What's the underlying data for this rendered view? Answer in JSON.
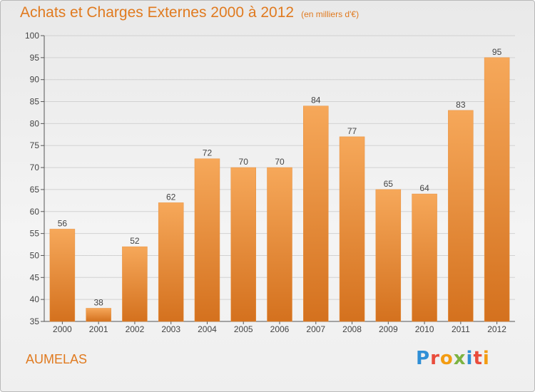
{
  "header": {
    "title": "Achats et Charges Externes 2000 à 2012",
    "subtitle": "(en milliers d'€)"
  },
  "footer": {
    "commune": "AUMELAS",
    "logo_letters": [
      "P",
      "r",
      "o",
      "x",
      "i",
      "t",
      "i"
    ]
  },
  "colors": {
    "accent": "#e07a1f",
    "bar_top": "#f6a85a",
    "bar_bottom": "#d4711e"
  },
  "chart_data": {
    "type": "bar",
    "categories": [
      "2000",
      "2001",
      "2002",
      "2003",
      "2004",
      "2005",
      "2006",
      "2007",
      "2008",
      "2009",
      "2010",
      "2011",
      "2012"
    ],
    "values": [
      56,
      38,
      52,
      62,
      72,
      70,
      70,
      84,
      77,
      65,
      64,
      83,
      95
    ],
    "ylim": [
      35,
      100
    ],
    "yticks": [
      35,
      40,
      45,
      50,
      55,
      60,
      65,
      70,
      75,
      80,
      85,
      90,
      95,
      100
    ],
    "grid": true,
    "data_labels": true
  }
}
